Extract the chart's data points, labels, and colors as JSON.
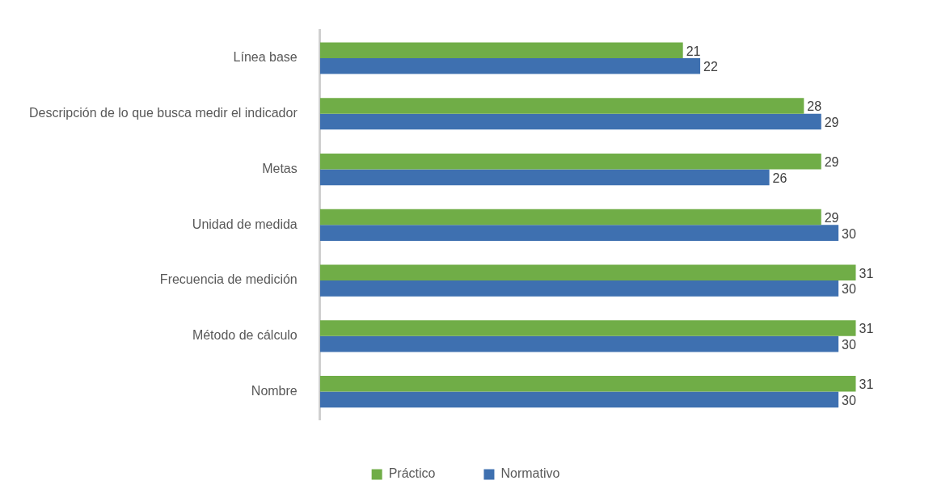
{
  "chart_data": {
    "type": "bar",
    "orientation": "horizontal",
    "categories": [
      "Línea base",
      "Descripción de lo que busca medir el indicador",
      "Metas",
      "Unidad de medida",
      "Frecuencia de medición",
      "Método de cálculo",
      "Nombre"
    ],
    "series": [
      {
        "name": "Práctico",
        "color": "#70ad47",
        "values": [
          21,
          28,
          29,
          29,
          31,
          31,
          31
        ]
      },
      {
        "name": "Normativo",
        "color": "#3e70b0",
        "values": [
          22,
          29,
          26,
          30,
          30,
          30,
          30
        ]
      }
    ],
    "data_labels": true,
    "legend": "bottom"
  }
}
